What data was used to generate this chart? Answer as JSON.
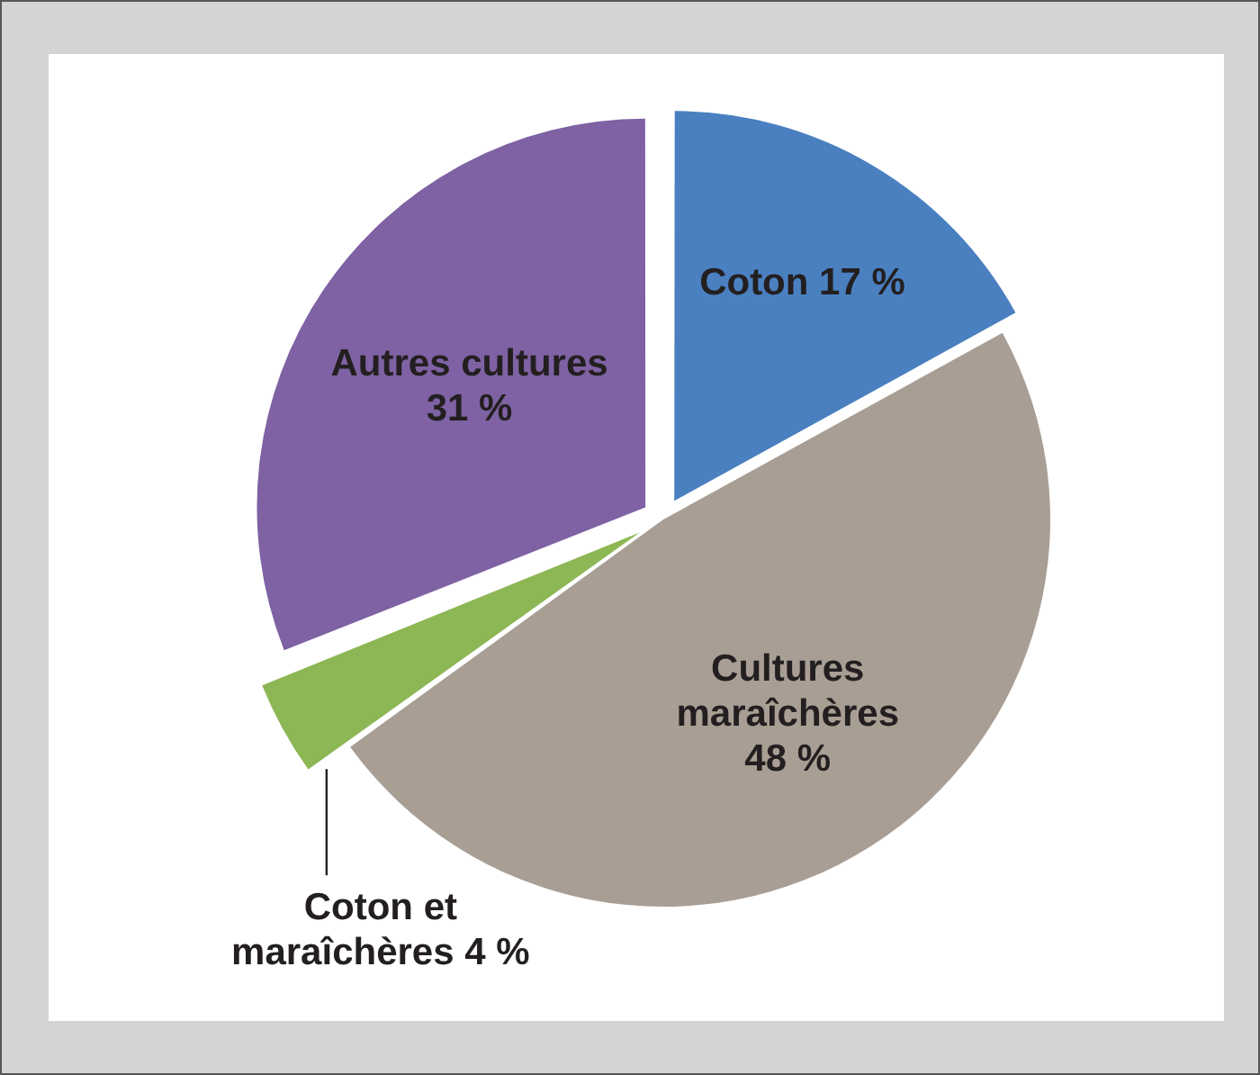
{
  "chart_data": {
    "type": "pie",
    "categories": [
      "Coton",
      "Cultures maraîchères",
      "Coton et maraîchères",
      "Autres cultures"
    ],
    "values": [
      17,
      48,
      4,
      31
    ],
    "value_labels": [
      "17 %",
      "48 %",
      "4 %",
      "31 %"
    ],
    "colors": [
      "#4a80c0",
      "#a89e94",
      "#8db654",
      "#7e62a3"
    ]
  }
}
